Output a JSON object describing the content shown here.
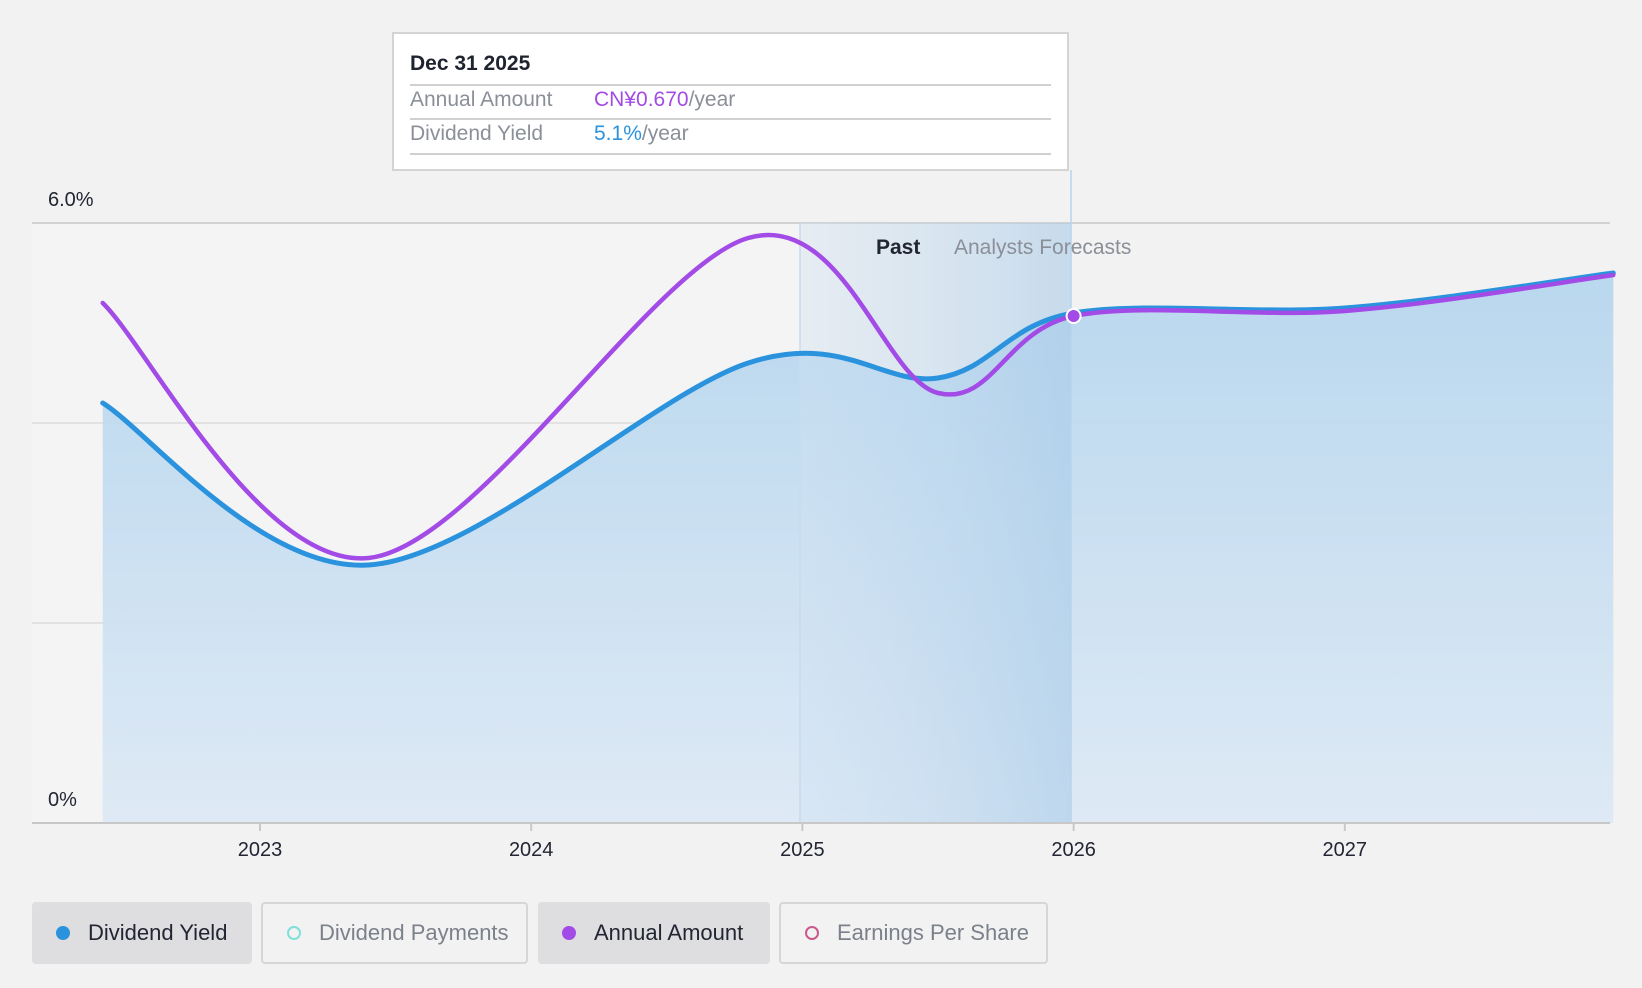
{
  "chart_data": {
    "type": "area",
    "y_axis": {
      "ticks": [
        "6.0%",
        "0%"
      ],
      "ylim": [
        0,
        6.0
      ]
    },
    "x_axis": {
      "ticks": [
        "2023",
        "2024",
        "2025",
        "2026",
        "2027"
      ]
    },
    "regions": {
      "past_label": "Past",
      "forecast_label": "Analysts Forecasts"
    },
    "series": [
      {
        "name": "Dividend Yield",
        "color": "#2b93de",
        "points": [
          {
            "x": 2022.42,
            "y": 4.2
          },
          {
            "x": 2023.4,
            "y": 2.58
          },
          {
            "x": 2024.8,
            "y": 4.6
          },
          {
            "x": 2025.5,
            "y": 4.45
          },
          {
            "x": 2026.0,
            "y": 5.1
          },
          {
            "x": 2027.0,
            "y": 5.15
          },
          {
            "x": 2027.99,
            "y": 5.5
          }
        ]
      },
      {
        "name": "Annual Amount",
        "color": "#a24be6",
        "points": [
          {
            "x": 2022.42,
            "y": 5.2
          },
          {
            "x": 2023.4,
            "y": 2.65
          },
          {
            "x": 2024.8,
            "y": 5.85
          },
          {
            "x": 2025.5,
            "y": 4.3
          },
          {
            "x": 2026.0,
            "y": 5.07
          },
          {
            "x": 2027.0,
            "y": 5.12
          },
          {
            "x": 2027.99,
            "y": 5.48
          }
        ]
      }
    ]
  },
  "tooltip": {
    "date": "Dec 31 2025",
    "annual_amount_label": "Annual Amount",
    "annual_amount_value": "CN¥0.670",
    "annual_amount_unit": "/year",
    "dividend_yield_label": "Dividend Yield",
    "dividend_yield_value": "5.1%",
    "dividend_yield_unit": "/year"
  },
  "legend": [
    {
      "label": "Dividend Yield",
      "color": "#2b93de",
      "state": "active"
    },
    {
      "label": "Dividend Payments",
      "color": "#7fe0d8",
      "state": "inactive"
    },
    {
      "label": "Annual Amount",
      "color": "#a24be6",
      "state": "active"
    },
    {
      "label": "Earnings Per Share",
      "color": "#c95b8c",
      "state": "inactive"
    }
  ]
}
